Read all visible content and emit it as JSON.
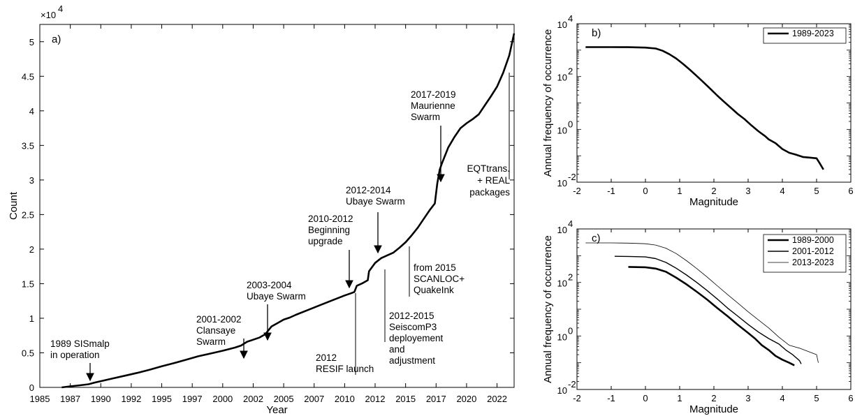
{
  "chart_data": [
    {
      "type": "line",
      "panel_label": "a)",
      "xlabel": "Year",
      "ylabel": "Count",
      "exponent_label": "×10",
      "exponent_power": "4",
      "xlim": [
        1985,
        2023.9
      ],
      "ylim": [
        0,
        52500
      ],
      "x_ticks": [
        1985,
        1987.5,
        1990,
        1992.5,
        1995,
        1997.5,
        2000,
        2002.5,
        2005,
        2007.5,
        2010,
        2012.5,
        2015,
        2017.5,
        2020,
        2022.5
      ],
      "x_tick_labels": [
        "1985",
        "1987",
        "1990",
        "1992",
        "1995",
        "1997",
        "2000",
        "2002",
        "2005",
        "2007",
        "2010",
        "2012",
        "2015",
        "2017",
        "2020",
        "2022"
      ],
      "y_ticks": [
        0,
        5000,
        10000,
        15000,
        20000,
        25000,
        30000,
        35000,
        40000,
        45000,
        50000
      ],
      "y_tick_labels": [
        "0",
        "0.5",
        "1",
        "1.5",
        "2",
        "2.5",
        "3",
        "3.5",
        "4",
        "4.5",
        "5"
      ],
      "series": [
        {
          "x": [
            1986.8,
            1987.5,
            1988.3,
            1989.0,
            1989.5,
            1990.0,
            1991.0,
            1992.0,
            1993.0,
            1994.0,
            1995.0,
            1996.0,
            1997.0,
            1998.0,
            1999.0,
            2000.0,
            2001.0,
            2001.5,
            2002.0,
            2002.5,
            2003.0,
            2003.5,
            2004.0,
            2004.5,
            2005.0,
            2005.5,
            2006.0,
            2007.0,
            2008.0,
            2009.0,
            2010.0,
            2010.5,
            2010.8,
            2011.0,
            2011.5,
            2011.9,
            2012.0,
            2012.5,
            2013.0,
            2013.5,
            2014.0,
            2014.5,
            2015.0,
            2015.5,
            2016.0,
            2016.5,
            2017.0,
            2017.4,
            2017.6,
            2017.8,
            2018.0,
            2018.5,
            2019.0,
            2019.5,
            2020.0,
            2020.5,
            2021.0,
            2021.5,
            2022.0,
            2022.5,
            2023.0,
            2023.5,
            2023.9
          ],
          "y": [
            0,
            150,
            300,
            450,
            700,
            900,
            1300,
            1700,
            2100,
            2550,
            3050,
            3500,
            4000,
            4500,
            4900,
            5300,
            5750,
            6050,
            6600,
            6900,
            7200,
            7700,
            8800,
            9300,
            9800,
            10100,
            10500,
            11200,
            11900,
            12600,
            13300,
            13600,
            13800,
            14700,
            15100,
            15500,
            16800,
            18000,
            18700,
            19100,
            19500,
            20200,
            21000,
            22000,
            23100,
            24400,
            25700,
            26600,
            29500,
            31500,
            32500,
            34700,
            36200,
            37500,
            38200,
            38800,
            39500,
            40800,
            42100,
            43500,
            45500,
            48000,
            51200
          ]
        }
      ],
      "annotations": [
        {
          "lines": [
            "1989 SISmalp",
            "in operation"
          ]
        },
        {
          "lines": [
            "2001-2002",
            "Clansaye",
            "Swarm"
          ]
        },
        {
          "lines": [
            "2003-2004",
            "Ubaye Swarm"
          ]
        },
        {
          "lines": [
            "2010-2012",
            "Beginning",
            "upgrade"
          ]
        },
        {
          "lines": [
            "2012-2014",
            "Ubaye Swarm"
          ]
        },
        {
          "lines": [
            "2017-2019",
            "Maurienne",
            "Swarm"
          ]
        },
        {
          "lines": [
            "2012",
            "RESIF launch"
          ]
        },
        {
          "lines": [
            "2012-2015",
            "SeiscomP3",
            "deployement",
            "and",
            "adjustment"
          ]
        },
        {
          "lines": [
            "from 2015",
            "SCANLOC+",
            "QuakeInk"
          ]
        },
        {
          "lines": [
            "EQTtrans.",
            "+ REAL",
            "packages"
          ]
        }
      ]
    },
    {
      "type": "line",
      "panel_label": "b)",
      "xlabel": "Magnitude",
      "ylabel": "Annual frequency of occurrence",
      "scale_y": "log",
      "xlim": [
        -2,
        6
      ],
      "ylim": [
        0.01,
        10000
      ],
      "x_tick_labels": [
        "-2",
        "-1",
        "0",
        "1",
        "2",
        "3",
        "4",
        "5",
        "6"
      ],
      "y_tick_labels": [
        {
          "base": "10",
          "exp": "-2"
        },
        {
          "base": "10",
          "exp": "0"
        },
        {
          "base": "10",
          "exp": "2"
        },
        {
          "base": "10",
          "exp": "4"
        }
      ],
      "legend_position": "top-right",
      "series": [
        {
          "name": "1989-2023",
          "x": [
            -1.75,
            -1.0,
            -0.5,
            0.0,
            0.3,
            0.5,
            0.7,
            0.9,
            1.1,
            1.3,
            1.5,
            1.7,
            1.9,
            2.1,
            2.3,
            2.5,
            2.7,
            2.9,
            3.1,
            3.3,
            3.5,
            3.6,
            3.8,
            4.0,
            4.2,
            4.4,
            4.6,
            4.8,
            5.0,
            5.1,
            5.2
          ],
          "y": [
            1300,
            1300,
            1290,
            1250,
            1150,
            950,
            700,
            480,
            300,
            180,
            105,
            60,
            34,
            19,
            11,
            6.5,
            3.8,
            2.4,
            1.4,
            0.85,
            0.55,
            0.42,
            0.3,
            0.18,
            0.13,
            0.11,
            0.09,
            0.085,
            0.08,
            0.05,
            0.03
          ]
        }
      ]
    },
    {
      "type": "line",
      "panel_label": "c)",
      "xlabel": "Magnitude",
      "ylabel": "Annual frequency of occurrence",
      "scale_y": "log",
      "xlim": [
        -2,
        6
      ],
      "ylim": [
        0.01,
        10000
      ],
      "x_tick_labels": [
        "-2",
        "-1",
        "0",
        "1",
        "2",
        "3",
        "4",
        "5",
        "6"
      ],
      "y_tick_labels": [
        {
          "base": "10",
          "exp": "-2"
        },
        {
          "base": "10",
          "exp": "0"
        },
        {
          "base": "10",
          "exp": "2"
        },
        {
          "base": "10",
          "exp": "4"
        }
      ],
      "legend_position": "top-right",
      "series": [
        {
          "name": "1989-2000",
          "x": [
            -0.5,
            0.0,
            0.3,
            0.6,
            0.9,
            1.2,
            1.5,
            1.8,
            2.1,
            2.4,
            2.7,
            3.0,
            3.2,
            3.4,
            3.6,
            3.8,
            4.0,
            4.2,
            4.35
          ],
          "y": [
            380,
            370,
            330,
            250,
            150,
            85,
            45,
            23,
            11,
            5.5,
            2.6,
            1.3,
            0.8,
            0.45,
            0.3,
            0.18,
            0.13,
            0.1,
            0.08
          ]
        },
        {
          "name": "2001-2012",
          "x": [
            -0.9,
            -0.5,
            0.0,
            0.3,
            0.6,
            0.9,
            1.2,
            1.5,
            1.8,
            2.1,
            2.4,
            2.7,
            3.0,
            3.3,
            3.6,
            3.9,
            4.1,
            4.3,
            4.5,
            4.55
          ],
          "y": [
            950,
            940,
            900,
            780,
            560,
            340,
            190,
            100,
            50,
            24,
            11,
            5.5,
            2.7,
            1.4,
            0.8,
            0.5,
            0.3,
            0.2,
            0.12,
            0.09
          ]
        },
        {
          "name": "2013-2023",
          "x": [
            -1.75,
            -1.0,
            -0.5,
            0.0,
            0.3,
            0.6,
            0.9,
            1.2,
            1.5,
            1.8,
            2.1,
            2.4,
            2.7,
            3.0,
            3.3,
            3.6,
            3.9,
            4.2,
            4.5,
            4.8,
            5.0,
            5.05
          ],
          "y": [
            3000,
            3000,
            2950,
            2800,
            2500,
            1900,
            1200,
            650,
            330,
            160,
            75,
            35,
            17,
            8,
            4,
            2,
            0.9,
            0.45,
            0.35,
            0.25,
            0.2,
            0.1
          ]
        }
      ]
    }
  ]
}
